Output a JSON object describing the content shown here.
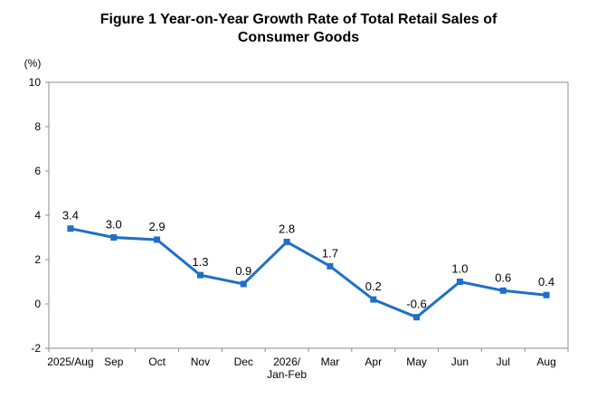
{
  "chart_data": {
    "type": "line",
    "title_lines": [
      "Figure 1 Year-on-Year Growth Rate of Total Retail Sales of",
      "Consumer Goods"
    ],
    "unit_label": "(%)",
    "categories": [
      [
        "2025/Aug"
      ],
      [
        "Sep"
      ],
      [
        "Oct"
      ],
      [
        "Nov"
      ],
      [
        "Dec"
      ],
      [
        "2026/",
        "Jan-Feb"
      ],
      [
        "Mar"
      ],
      [
        "Apr"
      ],
      [
        "May"
      ],
      [
        "Jun"
      ],
      [
        "Jul"
      ],
      [
        "Aug"
      ]
    ],
    "series": [
      {
        "values": [
          3.4,
          3.0,
          2.9,
          1.3,
          0.9,
          2.8,
          1.7,
          0.2,
          -0.6,
          1.0,
          0.6,
          0.4
        ],
        "data_labels": [
          "3.4",
          "3.0",
          "2.9",
          "1.3",
          "0.9",
          "2.8",
          "1.7",
          "0.2",
          "-0.6",
          "1.0",
          "0.6",
          "0.4"
        ]
      }
    ],
    "ylim": [
      -2,
      10
    ],
    "yticks": [
      -2,
      0,
      2,
      4,
      6,
      8,
      10
    ],
    "grid": false,
    "legend": "none",
    "line_color": "#1f6fc6"
  }
}
